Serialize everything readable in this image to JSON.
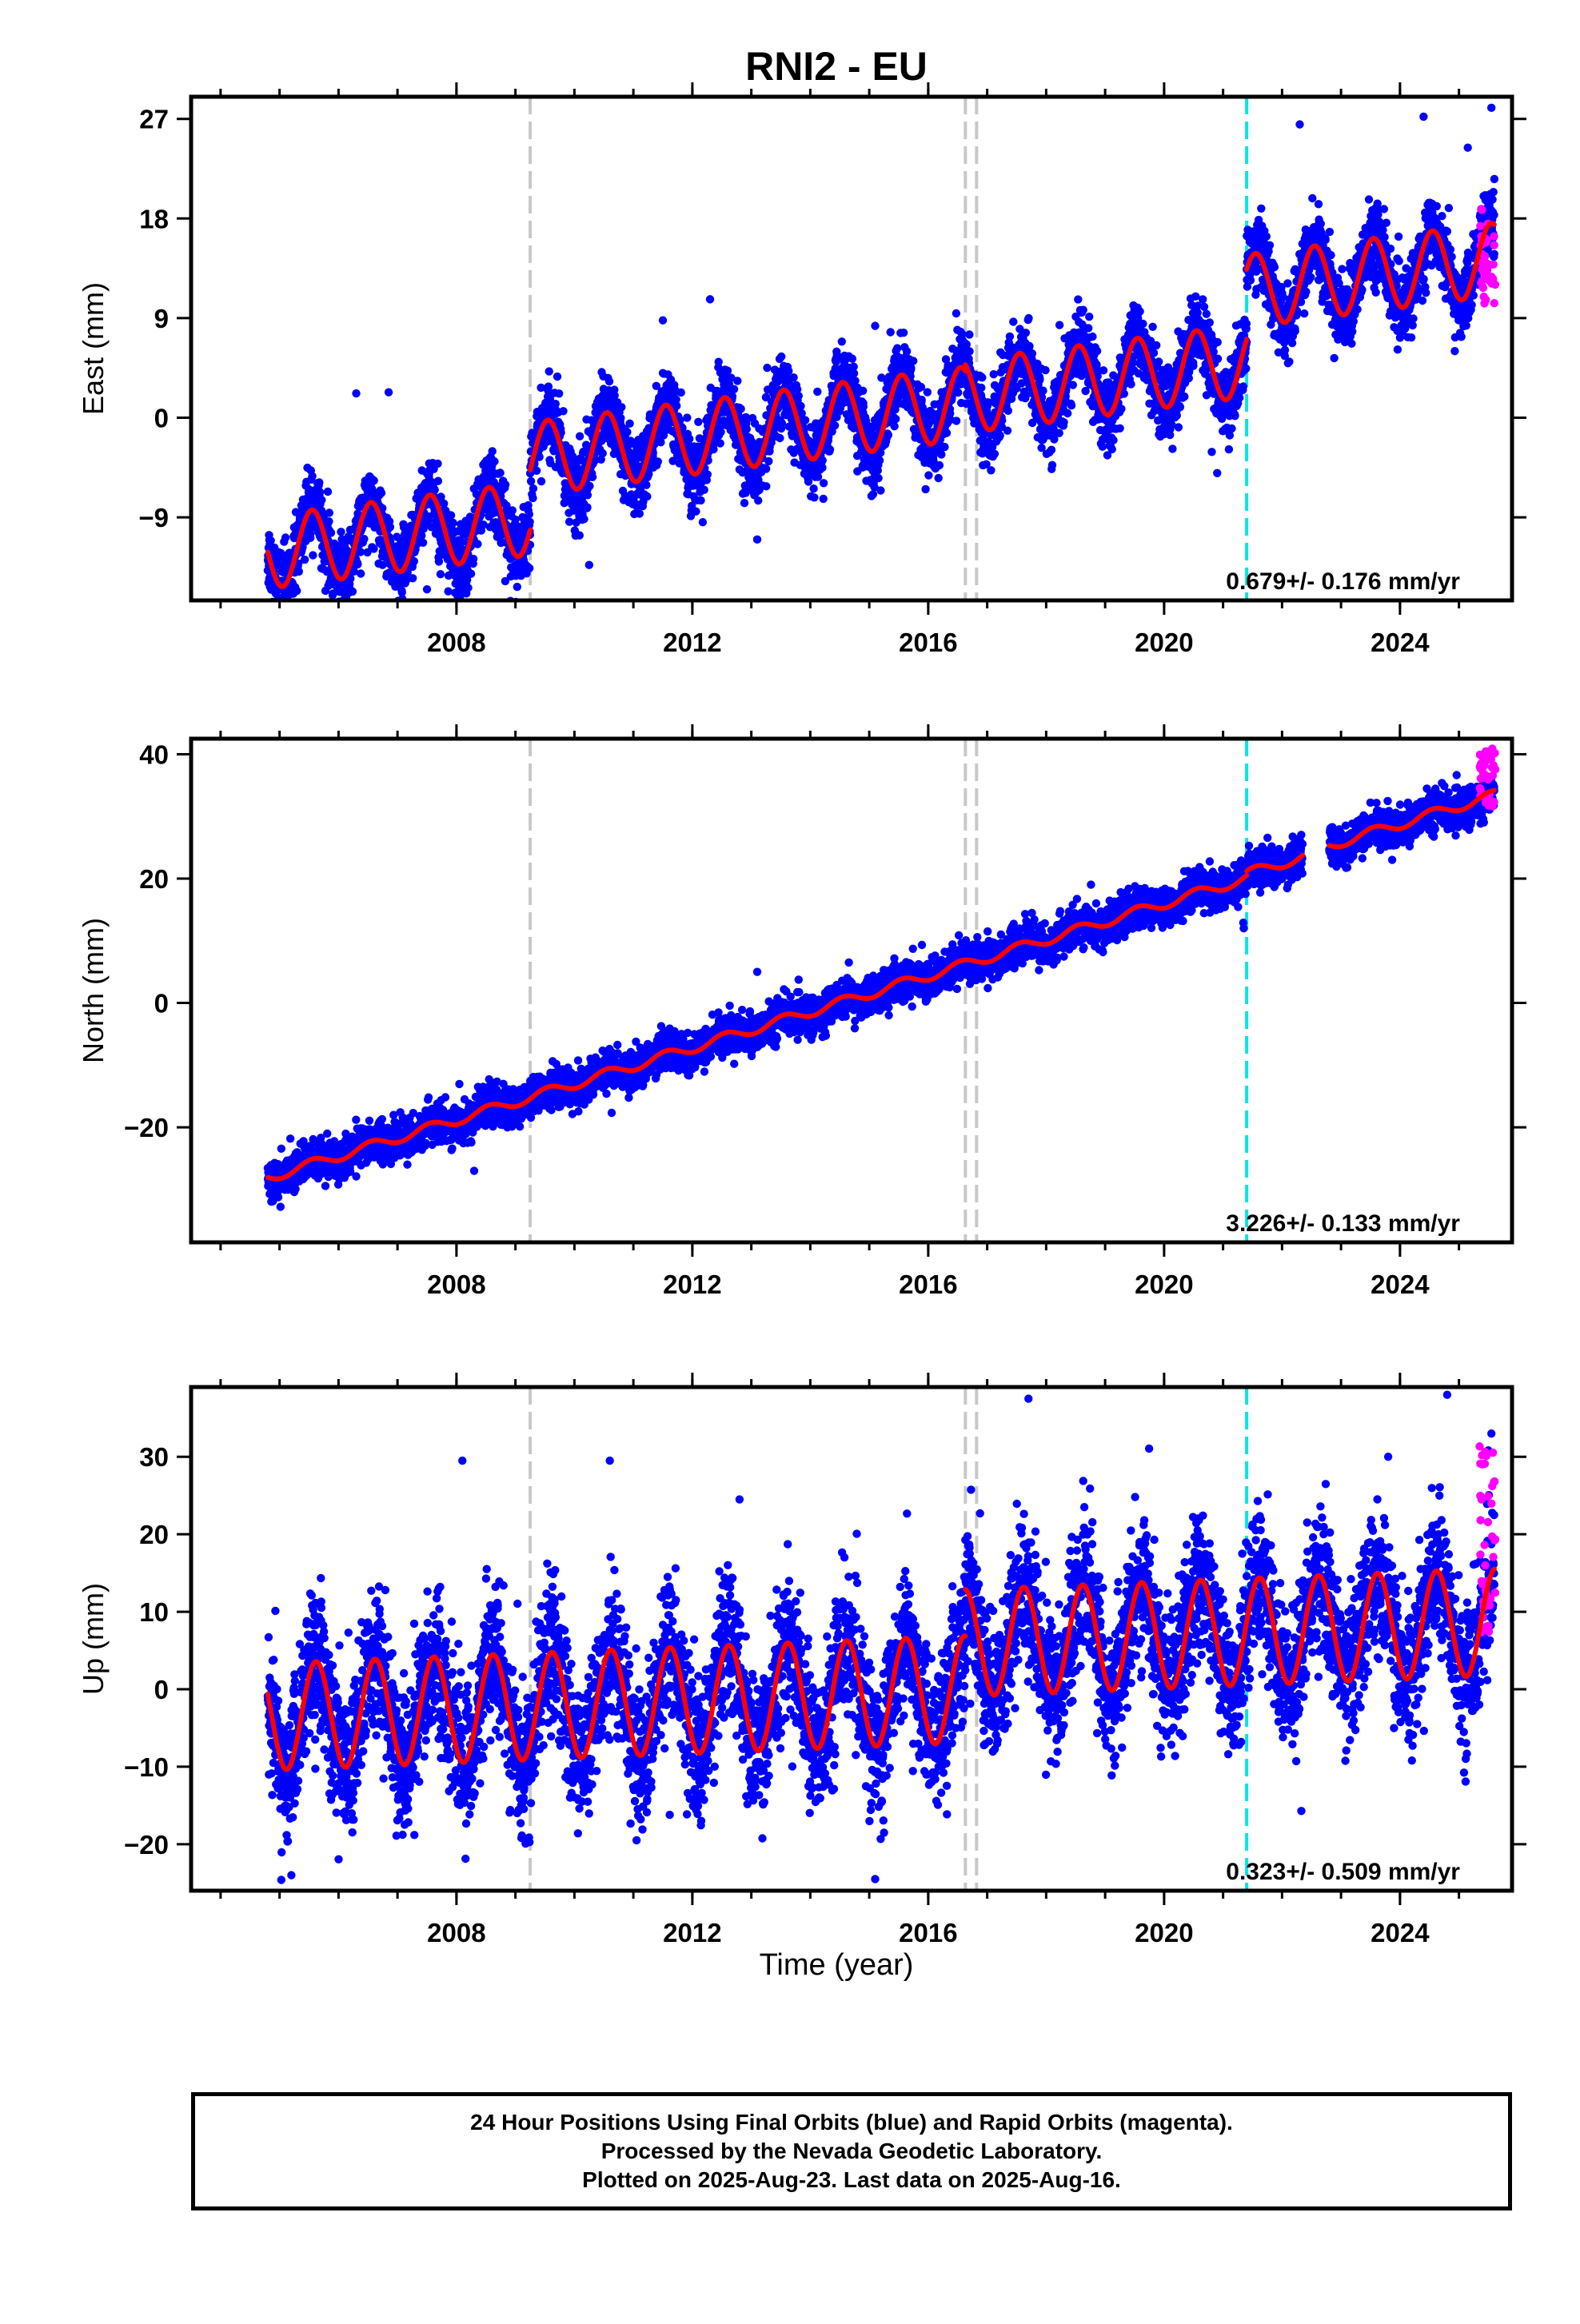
{
  "title": "RNI2 - EU",
  "x_axis_label": "Time (year)",
  "footer": {
    "line1": "24 Hour Positions Using Final Orbits (blue) and Rapid Orbits (magenta).",
    "line2": "Processed by the Nevada Geodetic Laboratory.",
    "line3": "Plotted on 2025-Aug-23. Last data on 2025-Aug-16."
  },
  "colors": {
    "final_orbits": "#0000ff",
    "rapid_orbits": "#ff00ff",
    "model_fit": "#ff0000",
    "equipment_change": "#c8c8c8",
    "earthquake": "#00e5e5"
  },
  "chart_data": [
    {
      "type": "scatter",
      "name": "east",
      "ylabel": "East (mm)",
      "xlim": [
        2003.5,
        2025.9
      ],
      "ylim": [
        -16.5,
        29
      ],
      "yticks": [
        -9,
        0,
        9,
        18,
        27
      ],
      "xticks": [
        2008,
        2012,
        2016,
        2020,
        2024
      ],
      "grid": false,
      "rate_label": "0.679+/- 0.176 mm/yr",
      "events_gray": [
        2009.25,
        2016.63,
        2016.82
      ],
      "events_cyan": [
        2021.4
      ],
      "fit": {
        "segments": [
          {
            "start": 2004.8,
            "end": 2009.25,
            "offset": -8.6,
            "slope": 0.68,
            "amp": 3.3
          },
          {
            "start": 2009.25,
            "end": 2016.63,
            "offset": -3.2,
            "slope": 0.68,
            "amp": 3.3
          },
          {
            "start": 2016.63,
            "end": 2021.4,
            "offset": -2.6,
            "slope": 0.68,
            "amp": 3.3
          },
          {
            "start": 2021.4,
            "end": 2025.6,
            "offset": 3.7,
            "slope": 0.68,
            "amp": 3.3
          }
        ],
        "ref_year": 2010,
        "phase_year": 0.55,
        "scatter_sd": 1.6
      },
      "rapid": {
        "start": 2025.35,
        "end": 2025.62,
        "min": 9.0,
        "max": 19.0
      },
      "outliers": [
        [
          2006.3,
          2.2
        ],
        [
          2006.85,
          2.3
        ],
        [
          2007.5,
          -15.5
        ],
        [
          2010.25,
          -13.3
        ],
        [
          2011.5,
          8.8
        ],
        [
          2012.3,
          10.7
        ],
        [
          2013.1,
          -11.0
        ],
        [
          2015.1,
          8.3
        ],
        [
          2020.9,
          -5.0
        ],
        [
          2022.3,
          26.5
        ],
        [
          2024.4,
          27.2
        ],
        [
          2025.15,
          24.4
        ],
        [
          2025.55,
          28.0
        ]
      ]
    },
    {
      "type": "scatter",
      "name": "north",
      "ylabel": "North (mm)",
      "xlim": [
        2003.5,
        2025.9
      ],
      "ylim": [
        -38.5,
        42.5
      ],
      "yticks": [
        -20,
        0,
        20,
        40
      ],
      "xticks": [
        2008,
        2012,
        2016,
        2020,
        2024
      ],
      "grid": false,
      "rate_label": "3.226+/- 0.133 mm/yr",
      "events_gray": [
        2009.25,
        2016.63,
        2016.82
      ],
      "events_cyan": [
        2021.4
      ],
      "fit": {
        "segments": [
          {
            "start": 2004.8,
            "end": 2021.4,
            "offset": -13.0,
            "slope": 2.9,
            "amp": 0.8
          },
          {
            "start": 2021.4,
            "end": 2022.35,
            "offset": -12.3,
            "slope": 2.9,
            "amp": 0.8
          },
          {
            "start": 2022.8,
            "end": 2025.6,
            "offset": -11.8,
            "slope": 2.9,
            "amp": 0.8
          }
        ],
        "ref_year": 2010,
        "phase_year": 0.55,
        "scatter_sd": 1.5
      },
      "rapid": {
        "start": 2025.35,
        "end": 2025.62,
        "min": 31.5,
        "max": 41.0
      },
      "outliers": [
        [
          2013.1,
          5.0
        ],
        [
          2020.65,
          19.5
        ],
        [
          2021.35,
          12.0
        ],
        [
          2008.3,
          -27.0
        ]
      ]
    },
    {
      "type": "scatter",
      "name": "up",
      "ylabel": "Up (mm)",
      "xlim": [
        2003.5,
        2025.9
      ],
      "ylim": [
        -26,
        39
      ],
      "yticks": [
        -20,
        -10,
        0,
        10,
        20,
        30
      ],
      "xticks": [
        2008,
        2012,
        2016,
        2020,
        2024
      ],
      "grid": false,
      "rate_label": "0.323+/- 0.509 mm/yr",
      "events_gray": [
        2009.25,
        2016.63,
        2016.82
      ],
      "events_cyan": [
        2021.4
      ],
      "fit": {
        "segments": [
          {
            "start": 2004.8,
            "end": 2016.63,
            "offset": -2.0,
            "slope": 0.3,
            "amp": 6.9
          },
          {
            "start": 2016.63,
            "end": 2025.6,
            "offset": 4.0,
            "slope": 0.3,
            "amp": 6.9
          }
        ],
        "ref_year": 2010,
        "phase_year": 0.62,
        "scatter_sd": 4.5
      },
      "rapid": {
        "start": 2025.35,
        "end": 2025.62,
        "min": 7.0,
        "max": 32.0
      },
      "outliers": [
        [
          2008.1,
          29.5
        ],
        [
          2010.6,
          29.5
        ],
        [
          2012.8,
          24.5
        ],
        [
          2017.7,
          37.5
        ],
        [
          2024.8,
          38.0
        ],
        [
          2025.55,
          33.0
        ],
        [
          2005.2,
          -24.0
        ],
        [
          2015.1,
          -24.5
        ],
        [
          2023.8,
          30.0
        ]
      ]
    }
  ]
}
